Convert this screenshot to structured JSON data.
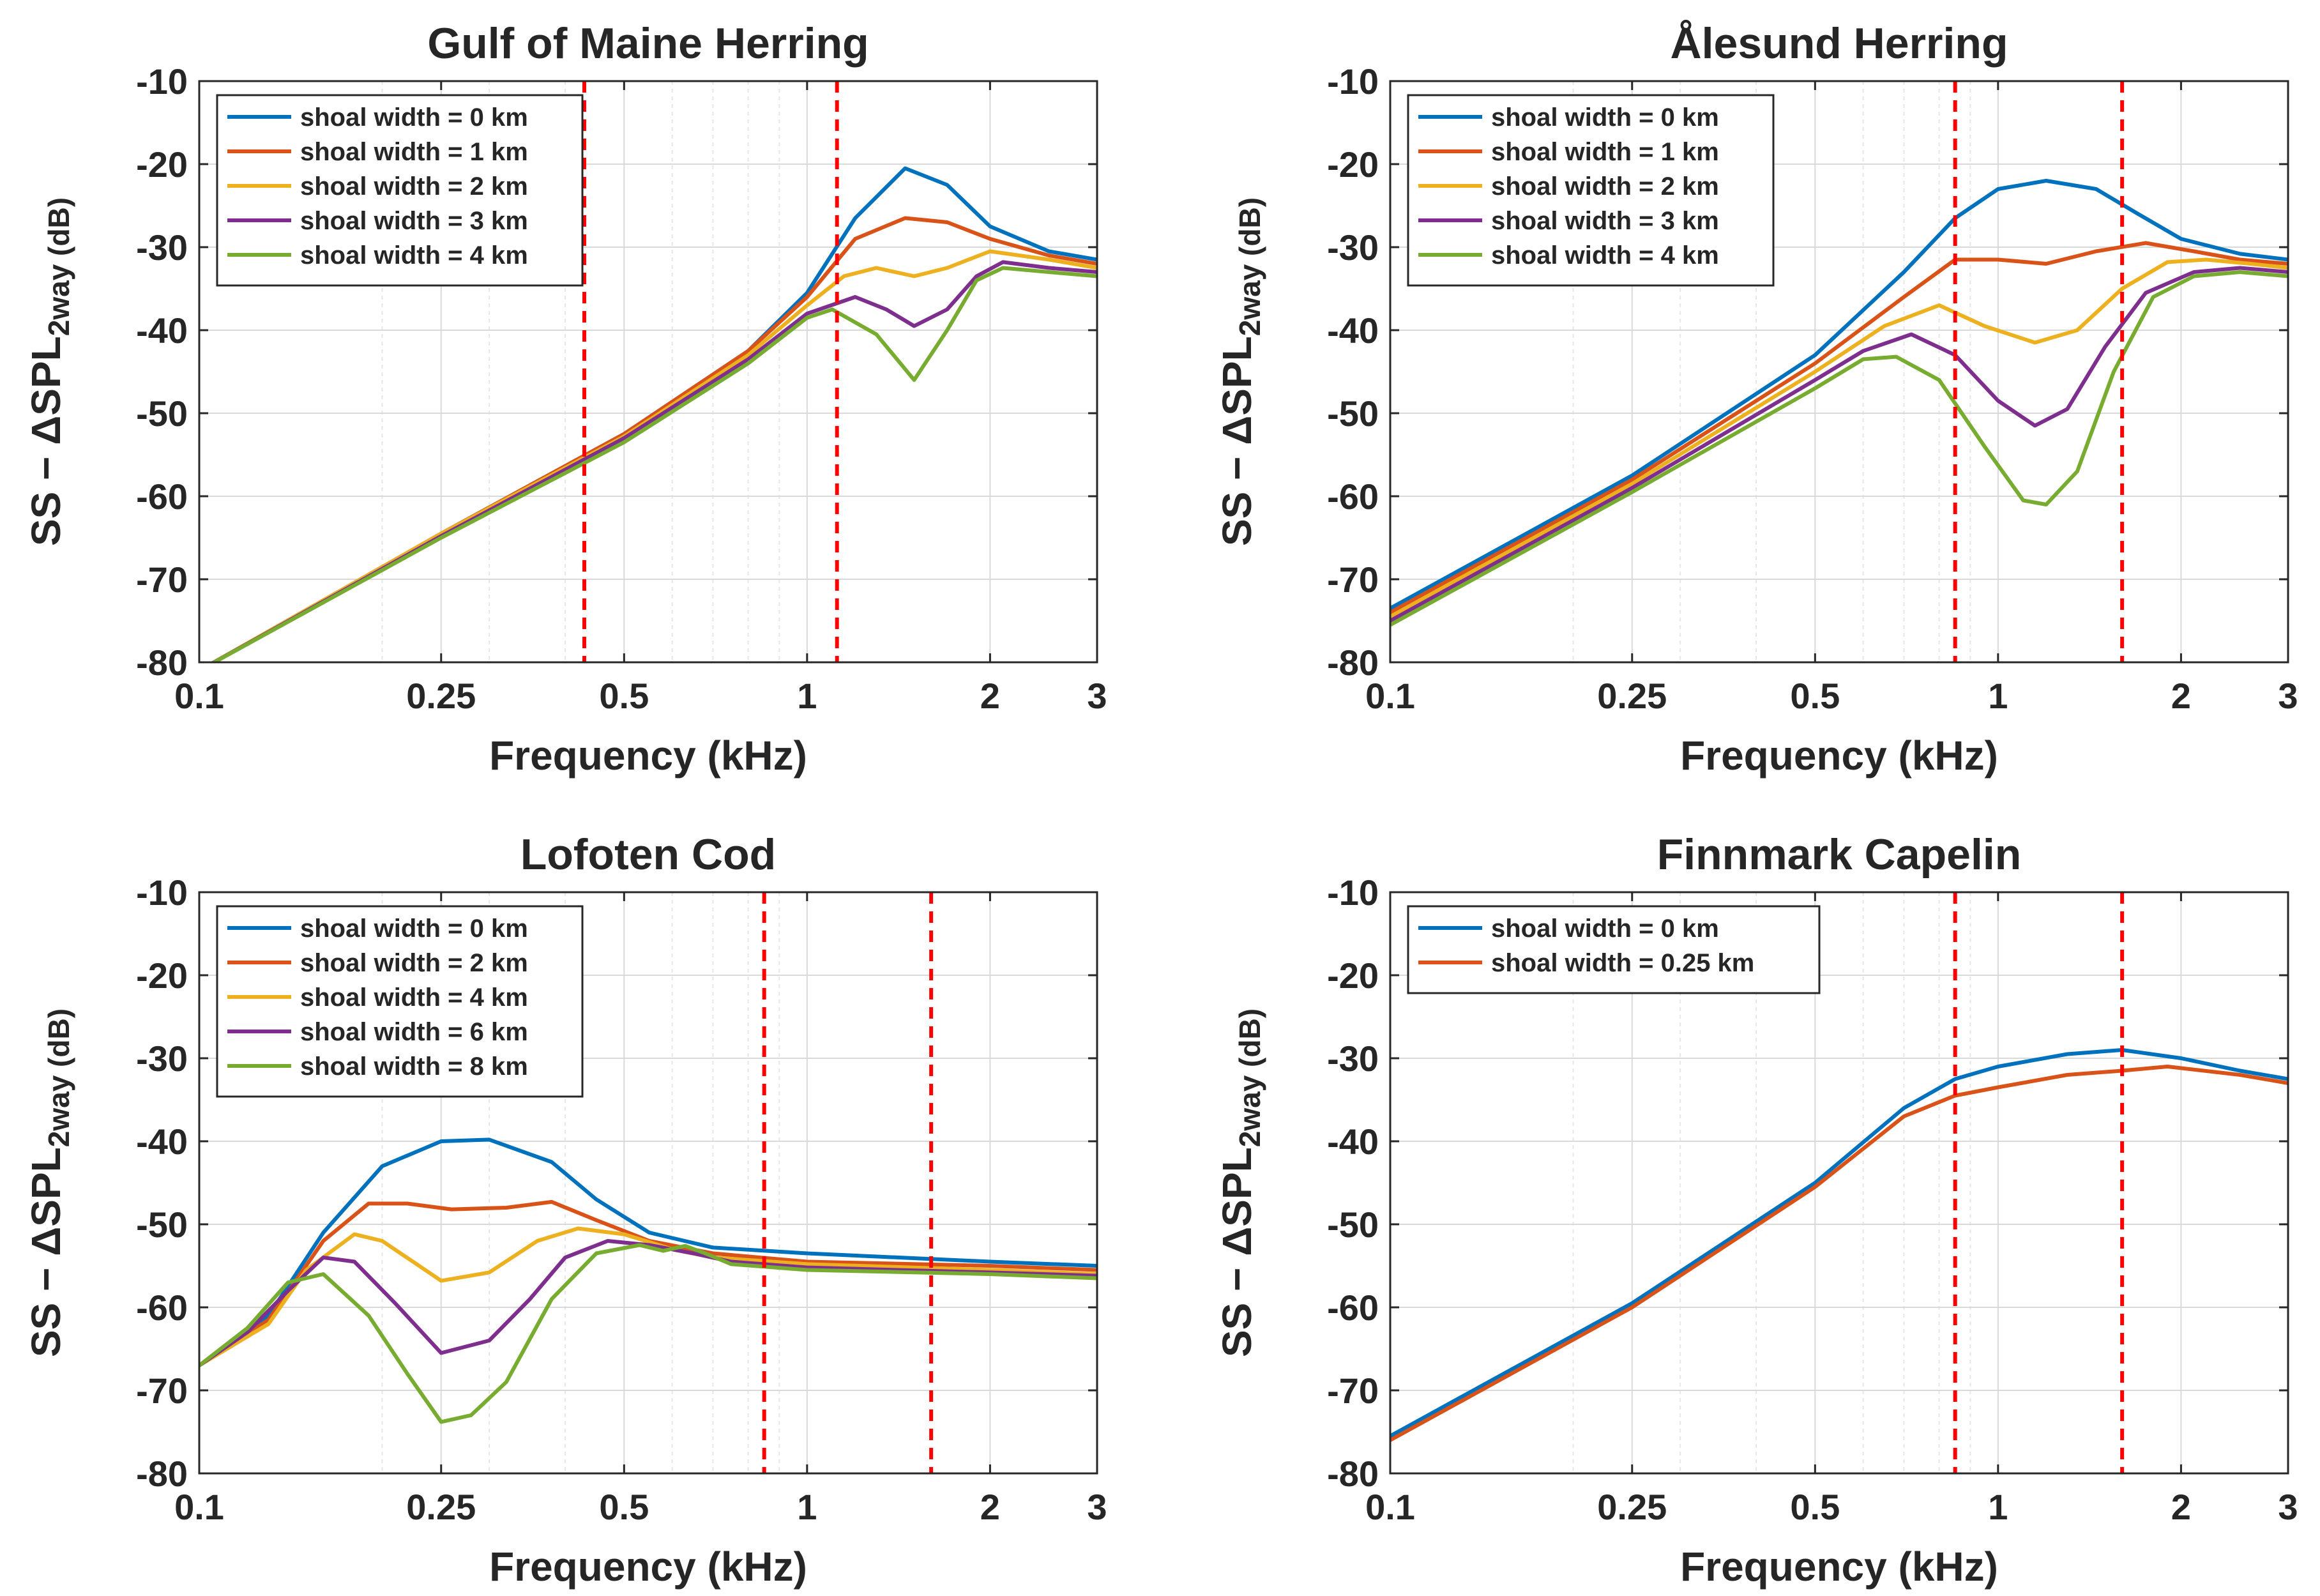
{
  "chart_data": [
    {
      "type": "line",
      "title": "Gulf of Maine Herring",
      "xlabel": "Frequency (kHz)",
      "ylabel": "SS − ΔSPL_2way (dB)",
      "xscale": "log",
      "xlim": [
        0.1,
        3
      ],
      "ylim": [
        -80,
        -10
      ],
      "xticks": [
        0.1,
        0.25,
        0.5,
        1,
        2,
        3
      ],
      "xtick_labels": [
        "0.1",
        "0.25",
        "0.5",
        "1",
        "2",
        "3"
      ],
      "yticks": [
        -80,
        -70,
        -60,
        -50,
        -40,
        -30,
        -20,
        -10
      ],
      "ytick_labels": [
        "-80",
        "-70",
        "-60",
        "-50",
        "-40",
        "-30",
        "-20",
        "-10"
      ],
      "grid": true,
      "legend_position": "top-left",
      "vertical_lines": [
        0.43,
        1.12
      ],
      "series": [
        {
          "name": "shoal width = 0 km",
          "color": "#0072BD",
          "x": [
            0.1,
            0.25,
            0.5,
            0.8,
            1.0,
            1.2,
            1.45,
            1.7,
            2.0,
            2.5,
            3.0
          ],
          "y": [
            -81,
            -64.5,
            -52.5,
            -42.5,
            -35.5,
            -26.5,
            -20.5,
            -22.5,
            -27.5,
            -30.5,
            -31.5
          ]
        },
        {
          "name": "shoal width = 1 km",
          "color": "#D95319",
          "x": [
            0.1,
            0.25,
            0.5,
            0.8,
            1.0,
            1.2,
            1.45,
            1.7,
            2.0,
            2.5,
            3.0
          ],
          "y": [
            -81,
            -64.5,
            -52.5,
            -42.5,
            -36,
            -29,
            -26.5,
            -27,
            -29,
            -31,
            -32
          ]
        },
        {
          "name": "shoal width = 2 km",
          "color": "#EDB120",
          "x": [
            0.1,
            0.25,
            0.5,
            0.8,
            1.0,
            1.15,
            1.3,
            1.5,
            1.7,
            2.0,
            2.5,
            3.0
          ],
          "y": [
            -81,
            -64.5,
            -52.8,
            -43,
            -37,
            -33.5,
            -32.5,
            -33.5,
            -32.5,
            -30.5,
            -31.5,
            -32.5
          ]
        },
        {
          "name": "shoal width = 3 km",
          "color": "#7E2F8E",
          "x": [
            0.1,
            0.25,
            0.5,
            0.8,
            1.0,
            1.2,
            1.35,
            1.5,
            1.7,
            1.9,
            2.1,
            2.5,
            3.0
          ],
          "y": [
            -81,
            -64.8,
            -53,
            -43.5,
            -38,
            -36,
            -37.5,
            -39.5,
            -37.5,
            -33.5,
            -31.8,
            -32.5,
            -33
          ]
        },
        {
          "name": "shoal width = 4 km",
          "color": "#77AC30",
          "x": [
            0.1,
            0.25,
            0.5,
            0.8,
            1.0,
            1.1,
            1.3,
            1.5,
            1.7,
            1.9,
            2.1,
            2.5,
            3.0
          ],
          "y": [
            -81,
            -65,
            -53.5,
            -44,
            -38.5,
            -37.5,
            -40.5,
            -46,
            -40,
            -34,
            -32.5,
            -33,
            -33.5
          ]
        }
      ]
    },
    {
      "type": "line",
      "title": "Ålesund Herring",
      "xlabel": "Frequency (kHz)",
      "ylabel": "SS − ΔSPL_2way (dB)",
      "xscale": "log",
      "xlim": [
        0.1,
        3
      ],
      "ylim": [
        -80,
        -10
      ],
      "xticks": [
        0.1,
        0.25,
        0.5,
        1,
        2,
        3
      ],
      "xtick_labels": [
        "0.1",
        "0.25",
        "0.5",
        "1",
        "2",
        "3"
      ],
      "yticks": [
        -80,
        -70,
        -60,
        -50,
        -40,
        -30,
        -20,
        -10
      ],
      "ytick_labels": [
        "-80",
        "-70",
        "-60",
        "-50",
        "-40",
        "-30",
        "-20",
        "-10"
      ],
      "grid": true,
      "legend_position": "top-left",
      "vertical_lines": [
        0.85,
        1.6
      ],
      "series": [
        {
          "name": "shoal width = 0 km",
          "color": "#0072BD",
          "x": [
            0.1,
            0.25,
            0.5,
            0.7,
            0.85,
            1.0,
            1.2,
            1.45,
            1.7,
            2.0,
            2.5,
            3.0
          ],
          "y": [
            -73.5,
            -57.5,
            -43,
            -33,
            -26.5,
            -23,
            -22,
            -23,
            -26,
            -29,
            -30.8,
            -31.5
          ]
        },
        {
          "name": "shoal width = 1 km",
          "color": "#D95319",
          "x": [
            0.1,
            0.25,
            0.5,
            0.7,
            0.85,
            1.0,
            1.2,
            1.45,
            1.75,
            2.1,
            2.5,
            3.0
          ],
          "y": [
            -74,
            -58,
            -44,
            -36,
            -31.5,
            -31.5,
            -32,
            -30.5,
            -29.5,
            -30.5,
            -31.5,
            -32
          ]
        },
        {
          "name": "shoal width = 2 km",
          "color": "#EDB120",
          "x": [
            0.1,
            0.25,
            0.5,
            0.65,
            0.8,
            0.95,
            1.15,
            1.35,
            1.6,
            1.9,
            2.2,
            2.6,
            3.0
          ],
          "y": [
            -74.5,
            -58.5,
            -45,
            -39.5,
            -37,
            -39.5,
            -41.5,
            -40,
            -35,
            -31.8,
            -31.5,
            -32,
            -32.5
          ]
        },
        {
          "name": "shoal width = 3 km",
          "color": "#7E2F8E",
          "x": [
            0.1,
            0.25,
            0.5,
            0.6,
            0.72,
            0.85,
            1.0,
            1.15,
            1.3,
            1.5,
            1.75,
            2.1,
            2.5,
            3.0
          ],
          "y": [
            -75,
            -59,
            -46,
            -42.5,
            -40.5,
            -43,
            -48.5,
            -51.5,
            -49.5,
            -42,
            -35.5,
            -33,
            -32.5,
            -33
          ]
        },
        {
          "name": "shoal width = 4 km",
          "color": "#77AC30",
          "x": [
            0.1,
            0.25,
            0.5,
            0.6,
            0.68,
            0.8,
            0.95,
            1.1,
            1.2,
            1.35,
            1.55,
            1.8,
            2.1,
            2.5,
            3.0
          ],
          "y": [
            -75.5,
            -59.5,
            -47,
            -43.5,
            -43.2,
            -46,
            -54,
            -60.5,
            -61,
            -57,
            -45,
            -36,
            -33.5,
            -33,
            -33.5
          ]
        }
      ]
    },
    {
      "type": "line",
      "title": "Lofoten Cod",
      "xlabel": "Frequency (kHz)",
      "ylabel": "SS − ΔSPL_2way (dB)",
      "xscale": "log",
      "xlim": [
        0.1,
        3
      ],
      "ylim": [
        -80,
        -10
      ],
      "xticks": [
        0.1,
        0.25,
        0.5,
        1,
        2,
        3
      ],
      "xtick_labels": [
        "0.1",
        "0.25",
        "0.5",
        "1",
        "2",
        "3"
      ],
      "yticks": [
        -80,
        -70,
        -60,
        -50,
        -40,
        -30,
        -20,
        -10
      ],
      "ytick_labels": [
        "-80",
        "-70",
        "-60",
        "-50",
        "-40",
        "-30",
        "-20",
        "-10"
      ],
      "grid": true,
      "legend_position": "top-left",
      "vertical_lines": [
        0.85,
        1.6
      ],
      "series": [
        {
          "name": "shoal width = 0 km",
          "color": "#0072BD",
          "x": [
            0.1,
            0.13,
            0.16,
            0.2,
            0.25,
            0.3,
            0.38,
            0.45,
            0.55,
            0.7,
            1.0,
            2.0,
            3.0
          ],
          "y": [
            -67,
            -61,
            -51,
            -43,
            -40,
            -39.8,
            -42.5,
            -47,
            -51,
            -52.8,
            -53.5,
            -54.5,
            -55
          ]
        },
        {
          "name": "shoal width = 2 km",
          "color": "#D95319",
          "x": [
            0.1,
            0.13,
            0.16,
            0.19,
            0.22,
            0.26,
            0.32,
            0.38,
            0.45,
            0.55,
            0.7,
            1.0,
            2.0,
            3.0
          ],
          "y": [
            -67,
            -61.5,
            -52,
            -47.5,
            -47.5,
            -48.2,
            -48,
            -47.3,
            -49.5,
            -52,
            -53.5,
            -54.5,
            -55,
            -55.5
          ]
        },
        {
          "name": "shoal width = 4 km",
          "color": "#EDB120",
          "x": [
            0.1,
            0.13,
            0.15,
            0.18,
            0.2,
            0.25,
            0.3,
            0.36,
            0.42,
            0.5,
            0.6,
            0.7,
            1.0,
            2.0,
            3.0
          ],
          "y": [
            -67,
            -62,
            -55.5,
            -51.2,
            -52,
            -56.8,
            -55.8,
            -52,
            -50.5,
            -51.2,
            -53,
            -54,
            -54.8,
            -55.5,
            -56
          ]
        },
        {
          "name": "shoal width = 6 km",
          "color": "#7E2F8E",
          "x": [
            0.1,
            0.12,
            0.14,
            0.16,
            0.18,
            0.21,
            0.25,
            0.3,
            0.35,
            0.4,
            0.47,
            0.55,
            0.65,
            0.75,
            1.0,
            2.0,
            3.0
          ],
          "y": [
            -67,
            -63,
            -58,
            -54,
            -54.5,
            -59.5,
            -65.5,
            -64,
            -59,
            -54,
            -52,
            -52.5,
            -53.5,
            -54.5,
            -55.2,
            -55.8,
            -56.2
          ]
        },
        {
          "name": "shoal width = 8 km",
          "color": "#77AC30",
          "x": [
            0.1,
            0.12,
            0.14,
            0.16,
            0.19,
            0.22,
            0.25,
            0.28,
            0.32,
            0.38,
            0.45,
            0.53,
            0.58,
            0.63,
            0.68,
            0.75,
            1.0,
            2.0,
            3.0
          ],
          "y": [
            -67,
            -62.5,
            -57,
            -56,
            -61,
            -68,
            -73.8,
            -73,
            -69,
            -59,
            -53.5,
            -52.5,
            -53.2,
            -52.6,
            -53.5,
            -54.8,
            -55.5,
            -56,
            -56.5
          ]
        }
      ]
    },
    {
      "type": "line",
      "title": "Finnmark Capelin",
      "xlabel": "Frequency (kHz)",
      "ylabel": "SS − ΔSPL_2way (dB)",
      "xscale": "log",
      "xlim": [
        0.1,
        3
      ],
      "ylim": [
        -80,
        -10
      ],
      "xticks": [
        0.1,
        0.25,
        0.5,
        1,
        2,
        3
      ],
      "xtick_labels": [
        "0.1",
        "0.25",
        "0.5",
        "1",
        "2",
        "3"
      ],
      "yticks": [
        -80,
        -70,
        -60,
        -50,
        -40,
        -30,
        -20,
        -10
      ],
      "ytick_labels": [
        "-80",
        "-70",
        "-60",
        "-50",
        "-40",
        "-30",
        "-20",
        "-10"
      ],
      "grid": true,
      "legend_position": "top-left",
      "vertical_lines": [
        0.85,
        1.6
      ],
      "series": [
        {
          "name": "shoal width = 0 km",
          "color": "#0072BD",
          "x": [
            0.1,
            0.25,
            0.5,
            0.7,
            0.85,
            1.0,
            1.3,
            1.6,
            2.0,
            2.5,
            3.0
          ],
          "y": [
            -75.5,
            -59.5,
            -45,
            -36,
            -32.5,
            -31,
            -29.5,
            -29,
            -30,
            -31.5,
            -32.5
          ]
        },
        {
          "name": "shoal width = 0.25 km",
          "color": "#D95319",
          "x": [
            0.1,
            0.25,
            0.5,
            0.7,
            0.85,
            1.0,
            1.3,
            1.6,
            1.9,
            2.5,
            3.0
          ],
          "y": [
            -76,
            -60,
            -45.5,
            -37,
            -34.5,
            -33.5,
            -32,
            -31.5,
            -31,
            -32,
            -33
          ]
        }
      ]
    }
  ]
}
